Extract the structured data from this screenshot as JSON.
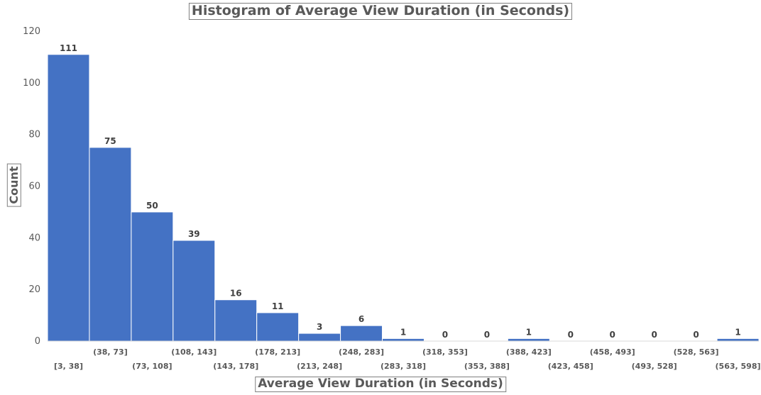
{
  "chart_data": {
    "type": "bar",
    "title": "Histogram of Average View Duration (in Seconds)",
    "xlabel": "Average View Duration (in Seconds)",
    "ylabel": "Count",
    "ylim": [
      0,
      120
    ],
    "yticks": [
      0,
      20,
      40,
      60,
      80,
      100,
      120
    ],
    "grid": false,
    "legend": "none",
    "categories": [
      "[3, 38]",
      "(38, 73]",
      "(73, 108]",
      "(108, 143]",
      "(143, 178]",
      "(178, 213]",
      "(213, 248]",
      "(248, 283]",
      "(283, 318]",
      "(318, 353]",
      "(353, 388]",
      "(388, 423]",
      "(423, 458]",
      "(458, 493]",
      "(493, 528]",
      "(528, 563]",
      "(563, 598]"
    ],
    "values": [
      111,
      75,
      50,
      39,
      16,
      11,
      3,
      6,
      1,
      0,
      0,
      1,
      0,
      0,
      0,
      0,
      1
    ],
    "bar_color": "#4472c4"
  }
}
